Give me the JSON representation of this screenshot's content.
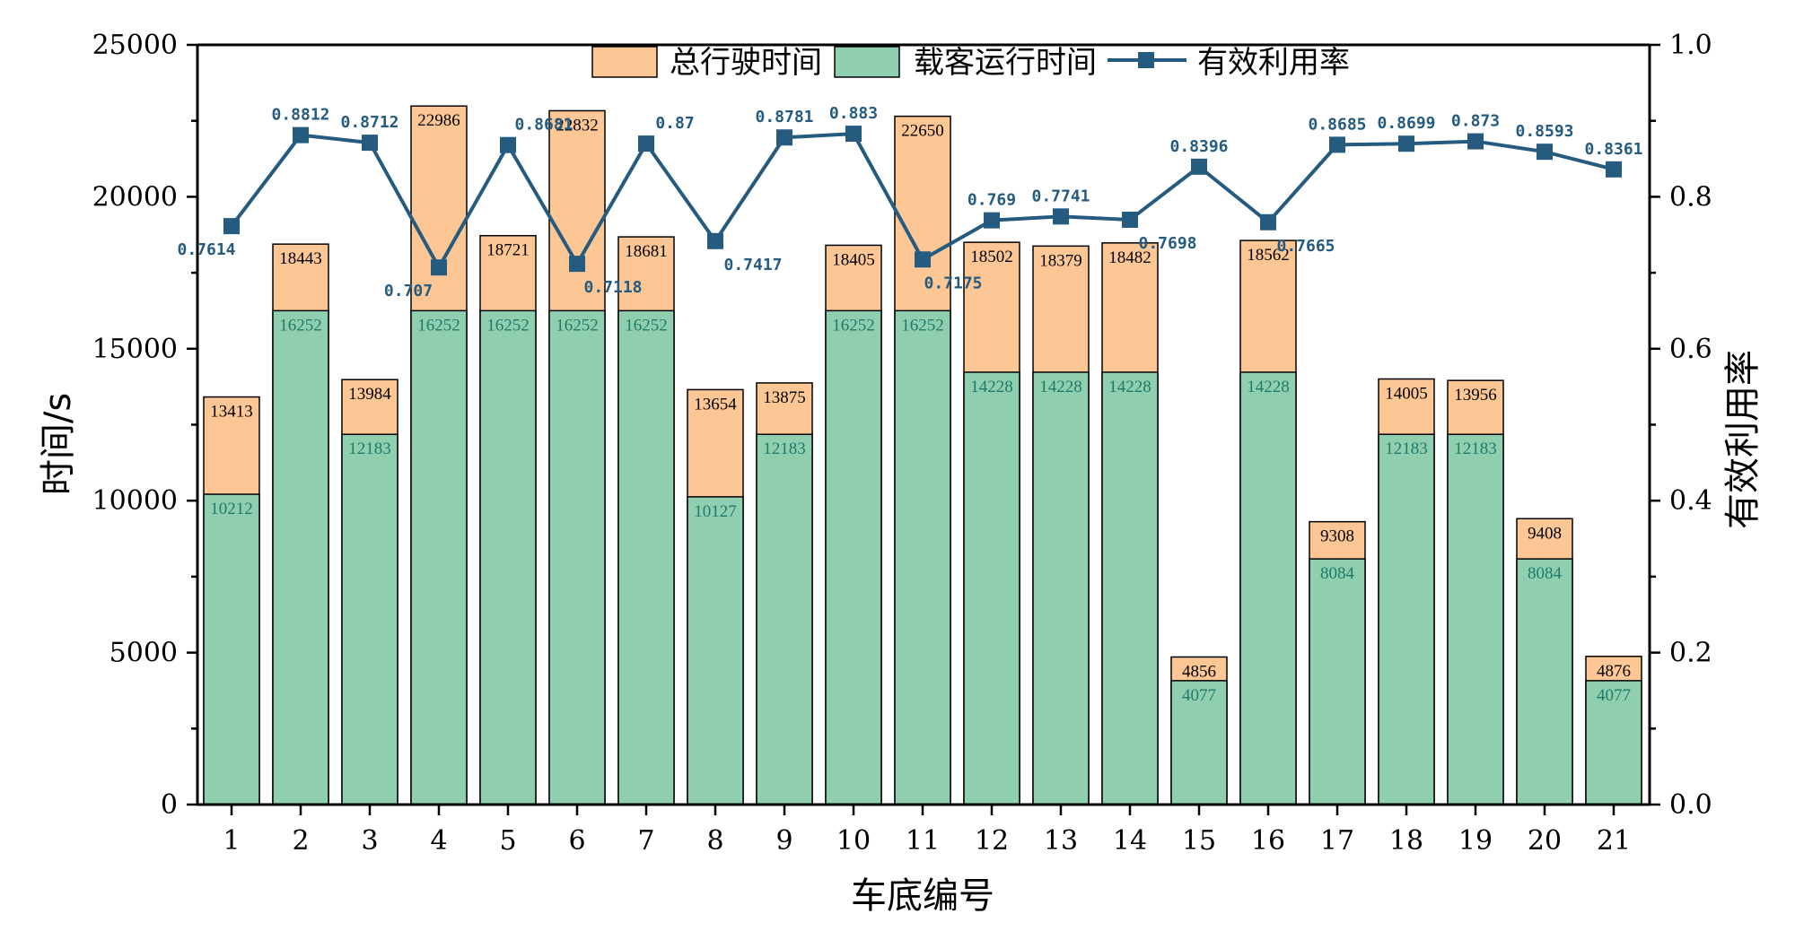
{
  "chart_data": {
    "type": "bar",
    "stacked": "overlay",
    "categories": [
      "1",
      "2",
      "3",
      "4",
      "5",
      "6",
      "7",
      "8",
      "9",
      "10",
      "11",
      "12",
      "13",
      "14",
      "15",
      "16",
      "17",
      "18",
      "19",
      "20",
      "21"
    ],
    "series": [
      {
        "name": "总行驶时间",
        "kind": "bar",
        "axis": "left",
        "color": "#fcc795",
        "values": [
          13413,
          18443,
          13984,
          22986,
          18721,
          22832,
          18681,
          13654,
          13875,
          18405,
          22650,
          18502,
          18379,
          18482,
          4856,
          18562,
          9308,
          14005,
          13956,
          9408,
          4876
        ],
        "labels": [
          "13413",
          "18443",
          "13984",
          "22986",
          "18721",
          "22832",
          "18681",
          "13654",
          "13875",
          "18405",
          "22650",
          "18502",
          "18379",
          "18482",
          "4856",
          "18562",
          "9308",
          "14005",
          "13956",
          "9408",
          "4876"
        ]
      },
      {
        "name": "载客运行时间",
        "kind": "bar",
        "axis": "left",
        "color": "#8fcfb0",
        "label_color": "#1f7a6a",
        "values": [
          10212,
          16252,
          12183,
          16252,
          16252,
          16252,
          16252,
          10127,
          12183,
          16252,
          16252,
          14228,
          14228,
          14228,
          4077,
          14228,
          8084,
          12183,
          12183,
          8084,
          4077
        ],
        "labels": [
          "10212",
          "16252",
          "12183",
          "16252",
          "16252",
          "16252",
          "16252",
          "10127",
          "12183",
          "16252",
          "16252",
          "14228",
          "14228",
          "14228",
          "4077",
          "14228",
          "8084",
          "12183",
          "12183",
          "8084",
          "4077"
        ]
      },
      {
        "name": "有效利用率",
        "kind": "line",
        "axis": "right",
        "color": "#265b80",
        "values": [
          0.7614,
          0.8812,
          0.8712,
          0.707,
          0.8681,
          0.7118,
          0.87,
          0.7417,
          0.8781,
          0.883,
          0.7175,
          0.769,
          0.7741,
          0.7698,
          0.8396,
          0.7665,
          0.8685,
          0.8699,
          0.873,
          0.8593,
          0.8361
        ],
        "labels": [
          "0.7614",
          "0.8812",
          "0.8712",
          "0.707",
          "0.8681",
          "0.7118",
          "0.87",
          "0.7417",
          "0.8781",
          "0.883",
          "0.7175",
          "0.769",
          "0.7741",
          "0.7698",
          "0.8396",
          "0.7665",
          "0.8685",
          "0.8699",
          "0.873",
          "0.8593",
          "0.8361"
        ]
      }
    ],
    "xlabel": "车底编号",
    "ylabel": "时间/s",
    "ylabel_right": "有效利用率",
    "ylim": [
      0,
      25000
    ],
    "ylim_right": [
      0.0,
      1.0
    ],
    "yticks": [
      "0",
      "5000",
      "10000",
      "15000",
      "20000",
      "25000"
    ],
    "yticks_right": [
      "0.0",
      "0.2",
      "0.4",
      "0.6",
      "0.8",
      "1.0"
    ],
    "legend_position": "top-center",
    "grid": false
  }
}
